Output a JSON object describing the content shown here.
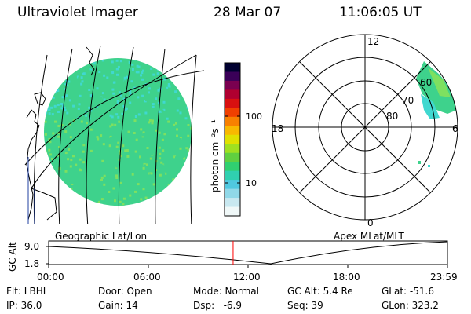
{
  "header": {
    "instrument": "Ultraviolet Imager",
    "date": "28 Mar 07",
    "time": "11:06:05 UT"
  },
  "colorbar": {
    "unit_label": "photon cm⁻²s⁻¹",
    "ticks": [
      "100",
      "10"
    ],
    "colors": [
      "#000030",
      "#3a0058",
      "#7a0050",
      "#b00030",
      "#d81010",
      "#f04000",
      "#f88000",
      "#f8b800",
      "#e0e000",
      "#a0e020",
      "#60d040",
      "#30d070",
      "#30d0b0",
      "#50c8e0",
      "#90d8e8",
      "#c8e8f0",
      "#f0f8f8"
    ]
  },
  "geo_panel": {
    "caption": "Geographic Lat/Lon",
    "image_colors": {
      "base": "#3ed28c",
      "cyan": "#40d8d0",
      "green": "#7ee060"
    }
  },
  "polar_panel": {
    "caption": "Apex MLat/MLT",
    "lat_labels": [
      "80",
      "70",
      "60"
    ],
    "mlt_labels": [
      "12",
      "18",
      "6",
      "0"
    ]
  },
  "timeline": {
    "ylabel": "GC Alt",
    "y_ticks": [
      "9.0",
      "1.8"
    ],
    "x_ticks": [
      "00:00",
      "06:00",
      "12:00",
      "18:00",
      "23:59"
    ],
    "current_time_color": "#ff0000",
    "current_time_hours": 11.1
  },
  "status": {
    "flt": "Flt: LBHL",
    "ip": "IP: 36.0",
    "door": "Door: Open",
    "gain": "Gain: 14",
    "mode": "Mode: Normal",
    "dsp": "Dsp:   -6.9",
    "gcalt": "GC Alt: 5.4 Re",
    "seq": "Seq: 39",
    "glat": "GLat: -51.6",
    "glon": "GLon: 323.2"
  }
}
